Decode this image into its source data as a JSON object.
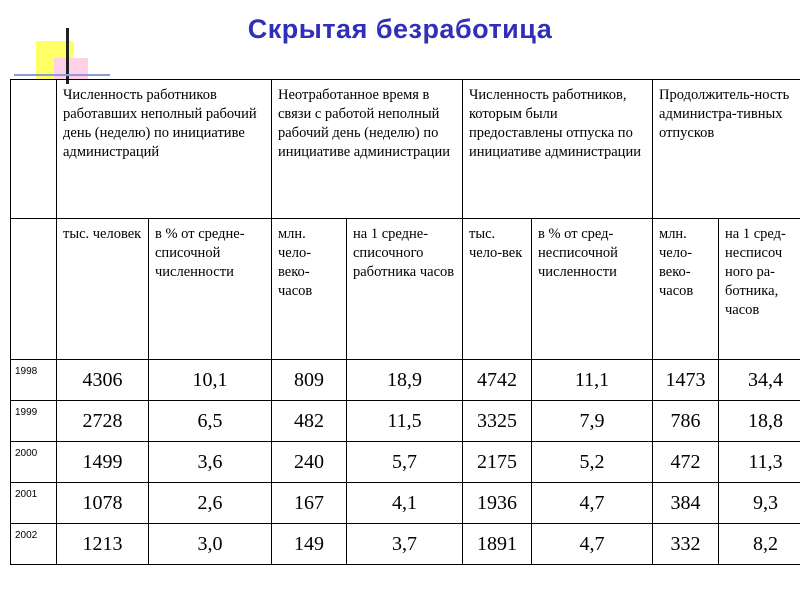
{
  "title": "Скрытая безработица",
  "table": {
    "group_headers": [
      "Численность работников работавших неполный рабочий день (неделю) по инициативе администраций",
      "Неотработанное время в связи с работой неполный рабочий день (неделю) по инициативе администрации",
      "Численность работников, которым были предоставлены отпуска по инициативе администрации",
      "Продолжитель-ность администра-тивных отпусков"
    ],
    "sub_headers": [
      "тыс. человек",
      "в % от средне-списочной численности",
      "млн. чело-веко-часов",
      "на 1 средне-списочного работника часов",
      "тыс. чело-век",
      "в % от сред-несписочной численности",
      "млн. чело-веко-часов",
      "на 1 сред-несписоч ного ра-ботника, часов"
    ],
    "rows": [
      {
        "year": "1998",
        "values": [
          "4306",
          "10,1",
          "809",
          "18,9",
          "4742",
          "11,1",
          "1473",
          "34,4"
        ]
      },
      {
        "year": "1999",
        "values": [
          "2728",
          "6,5",
          "482",
          "11,5",
          "3325",
          "7,9",
          "786",
          "18,8"
        ]
      },
      {
        "year": "2000",
        "values": [
          "1499",
          "3,6",
          "240",
          "5,7",
          "2175",
          "5,2",
          "472",
          "11,3"
        ]
      },
      {
        "year": "2001",
        "values": [
          "1078",
          "2,6",
          "167",
          "4,1",
          "1936",
          "4,7",
          "384",
          "9,3"
        ]
      },
      {
        "year": "2002",
        "values": [
          "1213",
          "3,0",
          "149",
          "3,7",
          "1891",
          "4,7",
          "332",
          "8,2"
        ]
      }
    ]
  }
}
